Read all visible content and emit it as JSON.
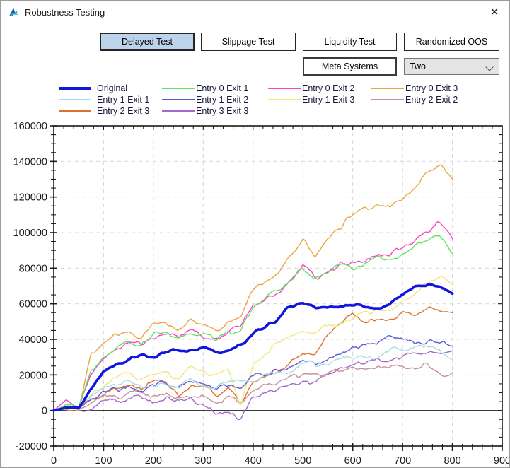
{
  "window": {
    "title": "Robustness Testing",
    "controls": {
      "minimize": "–",
      "maximize": "□",
      "close": "✕"
    }
  },
  "toolbar": {
    "buttons": [
      {
        "label": "Delayed Test",
        "active": true
      },
      {
        "label": "Slippage Test",
        "active": false
      },
      {
        "label": "Liquidity Test",
        "active": false
      },
      {
        "label": "Randomized OOS",
        "active": false
      }
    ],
    "meta_button": {
      "label": "Meta Systems"
    },
    "dropdown": {
      "value": "Two"
    }
  },
  "chart_data": {
    "type": "line",
    "title": "",
    "xlabel": "",
    "ylabel": "",
    "xlim": [
      0,
      900
    ],
    "ylim": [
      -20000,
      160000
    ],
    "x_major_step": 100,
    "x_minor_step": 20,
    "y_major_step": 20000,
    "y_minor_step": 5000,
    "x_tick_labels": [
      "0",
      "100",
      "200",
      "300",
      "400",
      "500",
      "600",
      "700",
      "800",
      "900"
    ],
    "y_tick_labels": [
      "-20000",
      "0",
      "20000",
      "40000",
      "60000",
      "80000",
      "100000",
      "120000",
      "140000",
      "160000"
    ],
    "grid": "dashed, at major ticks; solid line at y=0",
    "legend_position": "top",
    "x_start": 0,
    "x_step": 25,
    "x_end": 800,
    "series": [
      {
        "name": "Original",
        "color": "#1414df",
        "thick": true,
        "values": [
          0,
          1500,
          1000,
          12000,
          22000,
          26000,
          28000,
          30000,
          31500,
          33000,
          34000,
          34500,
          35000,
          33500,
          35500,
          37500,
          43000,
          47500,
          52500,
          57500,
          59500,
          57000,
          57500,
          58500,
          59000,
          58500,
          57500,
          59500,
          64000,
          68500,
          69500,
          70000,
          66000
        ]
      },
      {
        "name": "Entry 0 Exit 1",
        "color": "#5be65b",
        "thick": false,
        "values": [
          0,
          3000,
          1500,
          21000,
          29000,
          35000,
          39000,
          37000,
          41000,
          43000,
          41000,
          44500,
          43000,
          42000,
          45000,
          46500,
          60000,
          65000,
          68000,
          74000,
          81000,
          75000,
          78000,
          80000,
          81000,
          83000,
          85000,
          84000,
          88000,
          92000,
          95000,
          97000,
          88000
        ]
      },
      {
        "name": "Entry 0 Exit 2",
        "color": "#ff40c8",
        "thick": false,
        "values": [
          0,
          6000,
          2000,
          20000,
          28000,
          34000,
          38000,
          36000,
          40000,
          42000,
          40000,
          44000,
          42000,
          41000,
          44000,
          46000,
          59000,
          64000,
          67000,
          73000,
          80000,
          74000,
          79000,
          82000,
          84000,
          86000,
          88000,
          87000,
          93000,
          97000,
          100000,
          104000,
          98000
        ]
      },
      {
        "name": "Entry 0 Exit 3",
        "color": "#eca540",
        "thick": false,
        "values": [
          0,
          1000,
          500,
          30000,
          36000,
          42000,
          45000,
          42000,
          47000,
          50000,
          46000,
          50000,
          48000,
          46000,
          50000,
          52000,
          67000,
          74000,
          80000,
          89000,
          97000,
          86000,
          96000,
          101000,
          110000,
          114000,
          117000,
          115000,
          121000,
          127000,
          133000,
          139000,
          131000
        ]
      },
      {
        "name": "Entry 1 Exit 1",
        "color": "#a8dce4",
        "thick": false,
        "values": [
          0,
          2000,
          1000,
          7000,
          11000,
          14000,
          16000,
          14000,
          15000,
          17000,
          14000,
          16000,
          15000,
          14000,
          16000,
          15000,
          18000,
          20000,
          21000,
          23000,
          25000,
          26000,
          28000,
          29000,
          30000,
          31000,
          32000,
          33000,
          34000,
          35000,
          34000,
          33000,
          28000
        ]
      },
      {
        "name": "Entry 1 Exit 2",
        "color": "#5c5cd8",
        "thick": false,
        "values": [
          0,
          2000,
          800,
          6000,
          10000,
          13000,
          15000,
          13000,
          14000,
          15000,
          13000,
          15000,
          14000,
          12000,
          15000,
          14000,
          18000,
          20000,
          23000,
          26000,
          28000,
          27000,
          31000,
          34000,
          36000,
          38000,
          40000,
          42000,
          41000,
          39000,
          41000,
          38000,
          37000
        ]
      },
      {
        "name": "Entry 1 Exit 3",
        "color": "#f0e878",
        "thick": false,
        "values": [
          0,
          2500,
          1000,
          9000,
          14000,
          17000,
          20000,
          18000,
          21000,
          23000,
          20000,
          24000,
          22000,
          20000,
          23000,
          3000,
          27000,
          32000,
          37000,
          42000,
          46000,
          43000,
          47000,
          50000,
          52000,
          55000,
          57000,
          56000,
          62000,
          68000,
          72000,
          74000,
          68000
        ]
      },
      {
        "name": "Entry 2 Exit 2",
        "color": "#c6909a",
        "thick": false,
        "values": [
          0,
          2000,
          1000,
          5000,
          7000,
          9000,
          10000,
          8000,
          9000,
          10000,
          7000,
          9000,
          8000,
          6000,
          9000,
          7000,
          13000,
          15000,
          16000,
          17000,
          18000,
          19000,
          21000,
          22000,
          23000,
          22000,
          24000,
          23000,
          24000,
          23000,
          25000,
          22000,
          21000
        ]
      },
      {
        "name": "Entry 2 Exit 3",
        "color": "#e0702f",
        "thick": false,
        "values": [
          0,
          1500,
          500,
          6000,
          10000,
          13000,
          15000,
          12000,
          14000,
          16000,
          10000,
          15000,
          12000,
          8000,
          14000,
          2000,
          17000,
          21000,
          24000,
          28000,
          33000,
          30000,
          42000,
          48000,
          52000,
          48000,
          50000,
          52000,
          55000,
          53000,
          57000,
          58000,
          55000
        ]
      },
      {
        "name": "Entry 3 Exit 3",
        "color": "#a567c9",
        "thick": false,
        "values": [
          0,
          1000,
          300,
          3000,
          5000,
          7000,
          8000,
          6000,
          7000,
          8000,
          5000,
          6000,
          3000,
          -2000,
          -3000,
          -4000,
          9000,
          11000,
          13000,
          15000,
          16000,
          15000,
          19000,
          22000,
          25000,
          26000,
          28000,
          29000,
          30000,
          31000,
          32000,
          33000,
          34000
        ]
      }
    ]
  }
}
